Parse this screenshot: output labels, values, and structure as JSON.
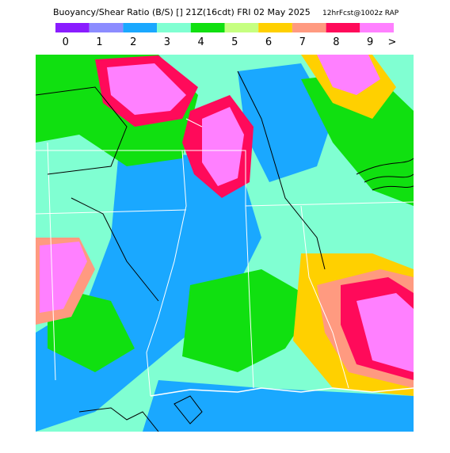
{
  "header": {
    "title": "Buoyancy/Shear Ratio (B/S)  [] 21Z(16cdt) FRI 02 May 2025",
    "subtitle": "12hrFcst@1002z RAP"
  },
  "legend": {
    "labels": [
      "0",
      "1",
      "2",
      "3",
      "4",
      "5",
      "6",
      "7",
      "8",
      "9"
    ],
    "more": ">",
    "colors": [
      "#8a1cff",
      "#8c8cff",
      "#1aa8ff",
      "#80ffd2",
      "#10e010",
      "#c6ff80",
      "#ffd000",
      "#ff9a80",
      "#ff0a5a",
      "#ff80ff"
    ]
  }
}
